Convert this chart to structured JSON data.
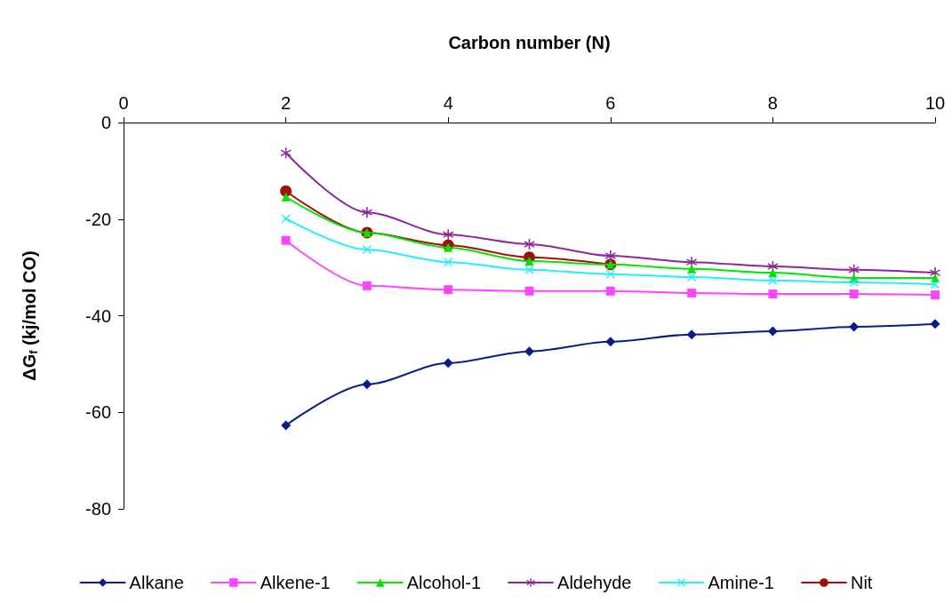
{
  "chart_data": {
    "type": "line",
    "xlabel": "Carbon number (N)",
    "ylabel": "ΔG$_{f}$ (kj/mol CO)",
    "xlim": [
      0,
      10
    ],
    "xticks": [
      0,
      2,
      4,
      6,
      8,
      10
    ],
    "ylim": [
      -80,
      0
    ],
    "yticks": [
      -80,
      -60,
      -40,
      -20,
      0
    ],
    "grid": false,
    "legend": "bottom",
    "line_style": "solid",
    "series": [
      {
        "name": "Alkane",
        "color": "#0a1c8c",
        "marker": "diamond",
        "x": [
          2,
          3,
          4,
          5,
          6,
          7,
          8,
          9,
          10
        ],
        "values": [
          -62.7,
          -54.2,
          -49.8,
          -47.4,
          -45.4,
          -43.9,
          -43.2,
          -42.3,
          -41.7
        ]
      },
      {
        "name": "Alkene-1",
        "color": "#ff44ff",
        "marker": "square",
        "x": [
          2,
          3,
          4,
          5,
          6,
          7,
          8,
          9,
          10
        ],
        "values": [
          -24.4,
          -33.8,
          -34.6,
          -34.9,
          -34.9,
          -35.3,
          -35.5,
          -35.5,
          -35.7
        ]
      },
      {
        "name": "Alcohol-1",
        "color": "#00e400",
        "marker": "triangle",
        "x": [
          2,
          3,
          4,
          5,
          6,
          7,
          8,
          9,
          10
        ],
        "values": [
          -15.4,
          -22.8,
          -25.9,
          -28.7,
          -29.4,
          -30.3,
          -31.1,
          -32.2,
          -32.2
        ]
      },
      {
        "name": "Aldehyde",
        "color": "#8a2a96",
        "marker": "star",
        "x": [
          2,
          3,
          4,
          5,
          6,
          7,
          8,
          9,
          10
        ],
        "values": [
          -6.3,
          -18.6,
          -23.2,
          -25.2,
          -27.6,
          -28.9,
          -29.8,
          -30.5,
          -31.1
        ]
      },
      {
        "name": "Amine-1",
        "color": "#22eeff",
        "marker": "cross",
        "x": [
          2,
          3,
          4,
          5,
          6,
          7,
          8,
          9,
          10
        ],
        "values": [
          -19.9,
          -26.3,
          -28.9,
          -30.5,
          -31.4,
          -32.0,
          -32.7,
          -33.1,
          -33.5
        ]
      },
      {
        "name": "Nit",
        "color": "#a01008",
        "marker": "circle",
        "x": [
          2,
          3,
          4,
          5,
          6
        ],
        "values": [
          -14.2,
          -22.8,
          -25.4,
          -27.9,
          -29.4
        ]
      }
    ]
  }
}
